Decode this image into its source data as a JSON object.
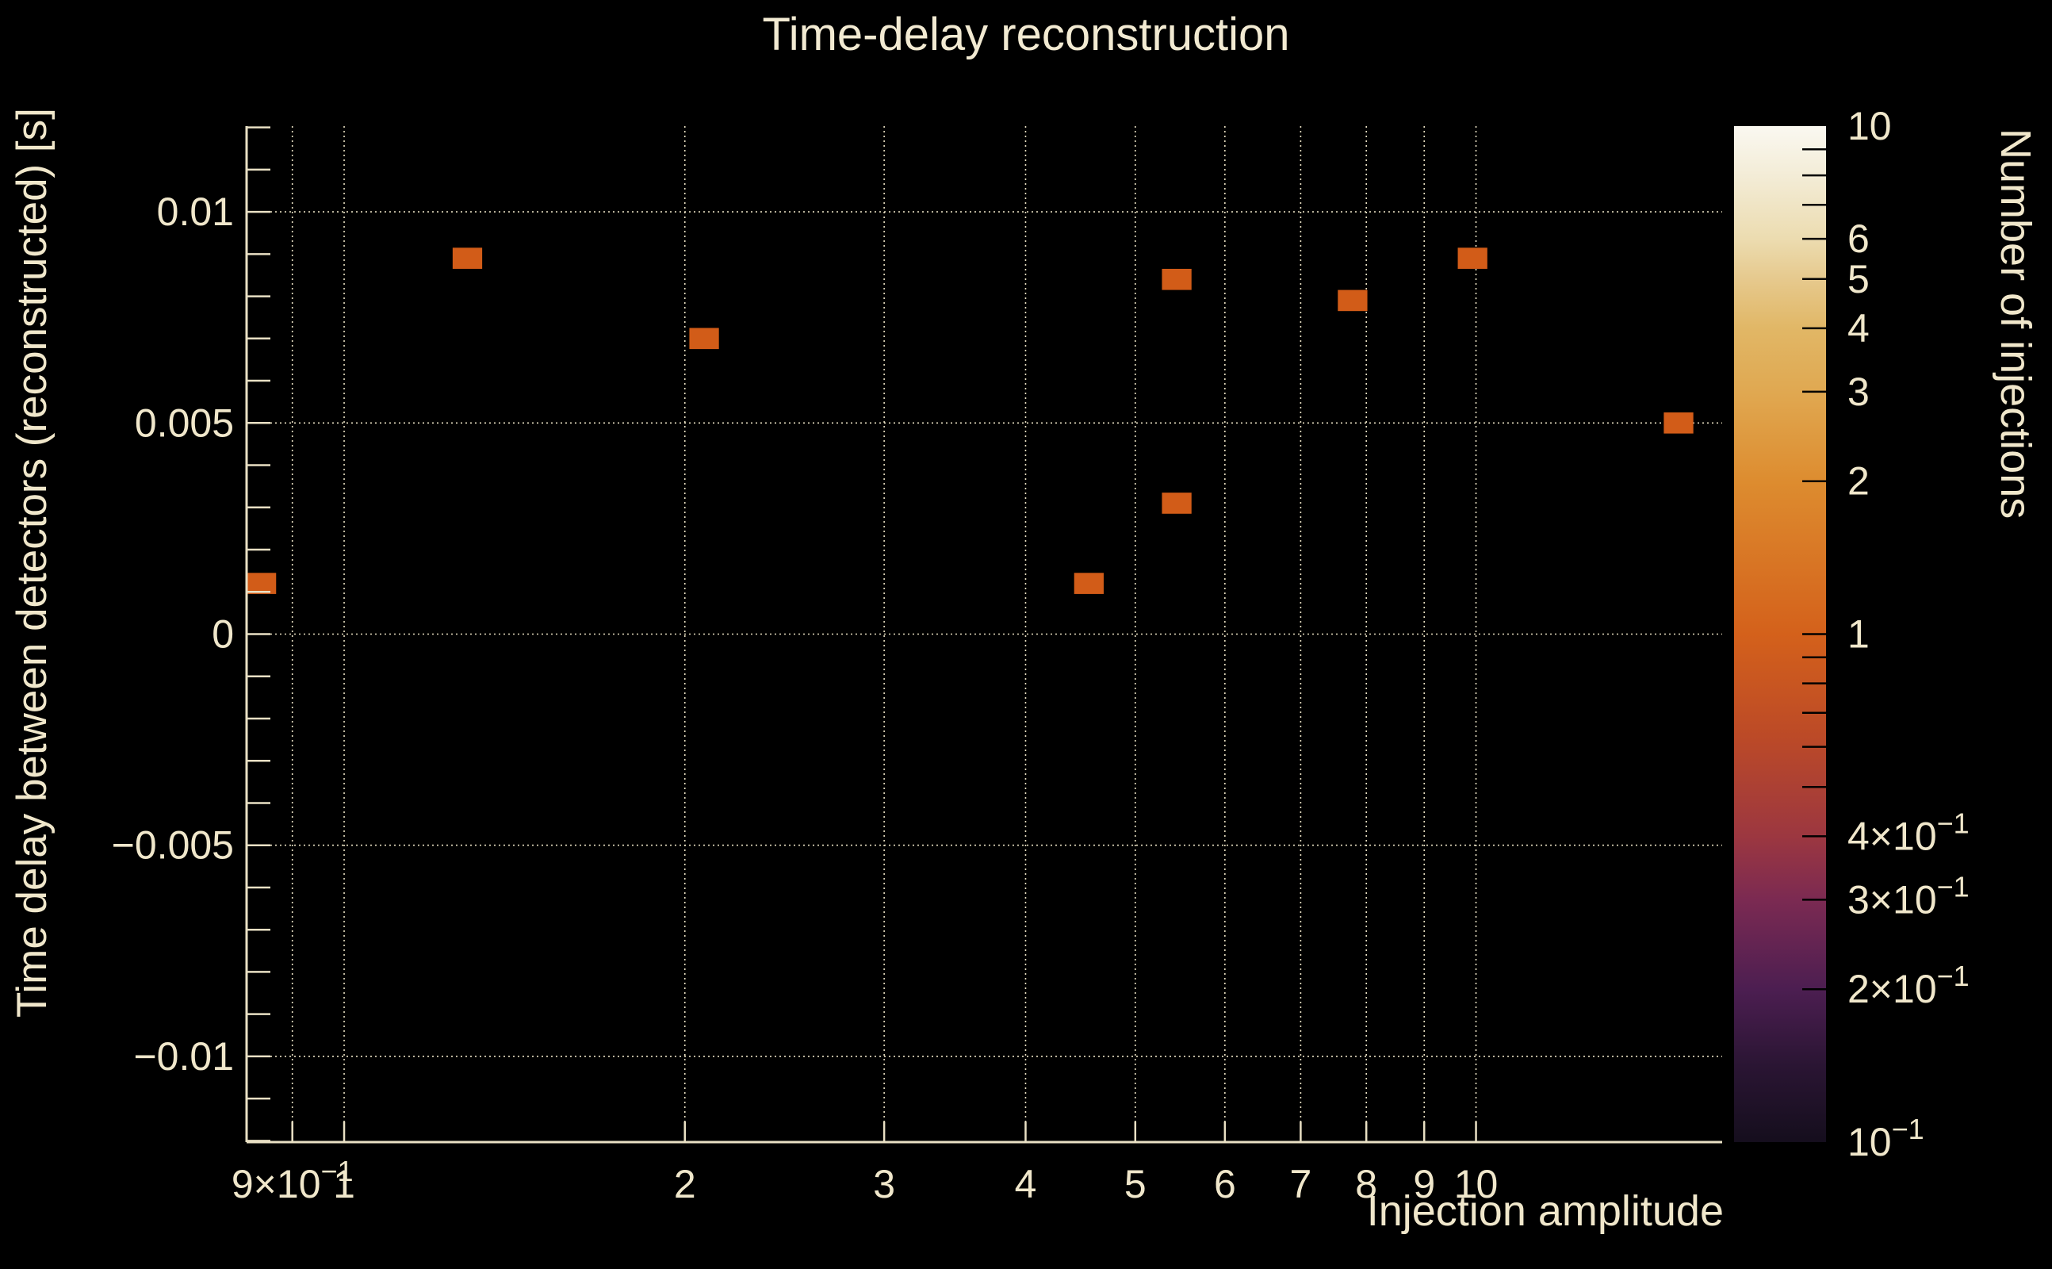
{
  "chart_data": {
    "type": "heatmap",
    "title": "Time-delay reconstruction",
    "xlabel": "Injection amplitude",
    "ylabel": "Time delay between detectors (reconstructed) [s]",
    "zlabel": "Number of injections",
    "x_scale": "log",
    "z_scale": "log",
    "xlim": [
      0.82,
      16.5
    ],
    "ylim": [
      -0.01203,
      0.01203
    ],
    "zlim": [
      0.1,
      10
    ],
    "grid": true,
    "x_major_ticks": [
      {
        "v": 0.9,
        "text": "9×10",
        "sup": "−1"
      },
      {
        "v": 1,
        "text": "1"
      },
      {
        "v": 2,
        "text": "2"
      },
      {
        "v": 3,
        "text": "3"
      },
      {
        "v": 4,
        "text": "4"
      },
      {
        "v": 5,
        "text": "5"
      },
      {
        "v": 6,
        "text": "6"
      },
      {
        "v": 7,
        "text": "7"
      },
      {
        "v": 8,
        "text": "8"
      },
      {
        "v": 9,
        "text": "9"
      },
      {
        "v": 10,
        "text": "10"
      }
    ],
    "y_major_ticks": [
      {
        "v": 0.01,
        "text": "0.01"
      },
      {
        "v": 0.005,
        "text": "0.005"
      },
      {
        "v": 0,
        "text": "0"
      },
      {
        "v": -0.005,
        "text": "−0.005"
      },
      {
        "v": -0.01,
        "text": "−0.01"
      }
    ],
    "y_minor_step": 0.001,
    "bin_half_width_decades": 0.01305,
    "bin_half_height": 0.00025,
    "points": [
      {
        "amplitude": 0.845,
        "time_delay": 0.0012,
        "count": 1
      },
      {
        "amplitude": 1.285,
        "time_delay": 0.0089,
        "count": 1
      },
      {
        "amplitude": 2.08,
        "time_delay": 0.007,
        "count": 1
      },
      {
        "amplitude": 4.55,
        "time_delay": 0.0012,
        "count": 1
      },
      {
        "amplitude": 5.44,
        "time_delay": 0.0031,
        "count": 1
      },
      {
        "amplitude": 5.44,
        "time_delay": 0.0084,
        "count": 1
      },
      {
        "amplitude": 7.78,
        "time_delay": 0.0079,
        "count": 1
      },
      {
        "amplitude": 9.93,
        "time_delay": 0.0089,
        "count": 1
      },
      {
        "amplitude": 15.1,
        "time_delay": 0.005,
        "count": 1
      }
    ],
    "colorbar": {
      "title": "Number of injections",
      "range": [
        0.1,
        10
      ],
      "scale": "log",
      "labels": [
        {
          "v": 10,
          "text": "10"
        },
        {
          "v": 6,
          "text": "6"
        },
        {
          "v": 5,
          "text": "5"
        },
        {
          "v": 4,
          "text": "4"
        },
        {
          "v": 3,
          "text": "3"
        },
        {
          "v": 2,
          "text": "2"
        },
        {
          "v": 1,
          "text": "1"
        },
        {
          "v": 0.4,
          "text": "4×10",
          "sup": "−1"
        },
        {
          "v": 0.3,
          "text": "3×10",
          "sup": "−1"
        },
        {
          "v": 0.2,
          "text": "2×10",
          "sup": "−1"
        },
        {
          "v": 0.1,
          "text": "10",
          "sup": "−1"
        }
      ],
      "minor_ticks": [
        9,
        8,
        7,
        6,
        5,
        4,
        3,
        2,
        1,
        0.9,
        0.8,
        0.7,
        0.6,
        0.5,
        0.4,
        0.3,
        0.2
      ],
      "gradient_stops_top_to_bottom": [
        {
          "offset": 0.0,
          "color": "#faf8f1"
        },
        {
          "offset": 0.05,
          "color": "#f3ecd6"
        },
        {
          "offset": 0.111,
          "color": "#ecdcb0"
        },
        {
          "offset": 0.151,
          "color": "#e6c98d"
        },
        {
          "offset": 0.199,
          "color": "#e1b766"
        },
        {
          "offset": 0.262,
          "color": "#e0a851"
        },
        {
          "offset": 0.35,
          "color": "#dd8c2f"
        },
        {
          "offset": 0.5,
          "color": "#d4611b"
        },
        {
          "offset": 0.6,
          "color": "#bc4a27"
        },
        {
          "offset": 0.699,
          "color": "#9c3740"
        },
        {
          "offset": 0.762,
          "color": "#7b2a52"
        },
        {
          "offset": 0.85,
          "color": "#4c1e51"
        },
        {
          "offset": 0.925,
          "color": "#2a1533"
        },
        {
          "offset": 1.0,
          "color": "#150e1d"
        }
      ]
    },
    "colors": {
      "background": "#000000",
      "text": "#f0e7cb",
      "axis": "#e9e0c4",
      "grid": "#e8dfc2",
      "bin_fill": "#d25c18",
      "colorbar_tick": "#000000"
    }
  }
}
